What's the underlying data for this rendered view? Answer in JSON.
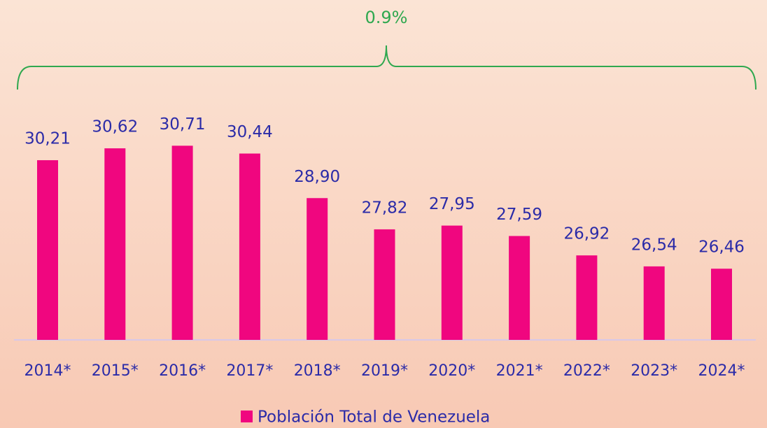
{
  "chart_data": {
    "type": "bar",
    "annotation": "0.9%",
    "categories": [
      "2014*",
      "2015*",
      "2016*",
      "2017*",
      "2018*",
      "2019*",
      "2020*",
      "2021*",
      "2022*",
      "2023*",
      "2024*"
    ],
    "series": [
      {
        "name": "Población Total de Venezuela",
        "color": "#f0067f",
        "values": [
          30.21,
          30.62,
          30.71,
          30.44,
          28.9,
          27.82,
          27.95,
          27.59,
          26.92,
          26.54,
          26.46
        ],
        "value_labels": [
          "30,21",
          "30,62",
          "30,71",
          "30,44",
          "28,90",
          "27,82",
          "27,95",
          "27,59",
          "26,92",
          "26,54",
          "26,46"
        ]
      }
    ],
    "ylim": [
      24,
      32
    ]
  }
}
